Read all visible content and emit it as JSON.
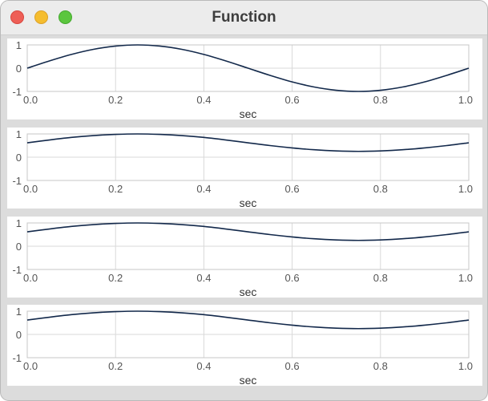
{
  "window": {
    "title": "Function",
    "controls": {
      "close": "close-button",
      "minimize": "minimize-button",
      "zoom": "zoom-button"
    },
    "colors": {
      "close": "#ee5f57",
      "minimize": "#f5bd2f",
      "zoom": "#5bc63e",
      "curve": "#13294b"
    }
  },
  "chart_data": [
    {
      "type": "line",
      "xlabel": "sec",
      "x_ticks": [
        "0.0",
        "0.2",
        "0.4",
        "0.6",
        "0.8",
        "1.0"
      ],
      "y_ticks": [
        "1",
        "0",
        "-1"
      ],
      "xlim": [
        0,
        1
      ],
      "ylim": [
        -1,
        1
      ],
      "grid": true,
      "series": [
        {
          "x": [
            0,
            0.05,
            0.1,
            0.15,
            0.2,
            0.25,
            0.3,
            0.35,
            0.4,
            0.45,
            0.5,
            0.55,
            0.6,
            0.65,
            0.7,
            0.75,
            0.8,
            0.85,
            0.9,
            0.95,
            1.0
          ],
          "y": [
            0,
            0.31,
            0.59,
            0.81,
            0.95,
            1.0,
            0.95,
            0.81,
            0.59,
            0.31,
            0,
            -0.31,
            -0.59,
            -0.81,
            -0.95,
            -1.0,
            -0.95,
            -0.81,
            -0.59,
            -0.31,
            0
          ]
        }
      ]
    },
    {
      "type": "line",
      "xlabel": "sec",
      "x_ticks": [
        "0.0",
        "0.2",
        "0.4",
        "0.6",
        "0.8",
        "1.0"
      ],
      "y_ticks": [
        "1",
        "0",
        "-1"
      ],
      "xlim": [
        0,
        1
      ],
      "ylim": [
        -1,
        1
      ],
      "grid": true,
      "series": [
        {
          "x": [
            0,
            0.05,
            0.1,
            0.15,
            0.2,
            0.25,
            0.3,
            0.35,
            0.4,
            0.45,
            0.5,
            0.55,
            0.6,
            0.65,
            0.7,
            0.75,
            0.8,
            0.85,
            0.9,
            0.95,
            1.0
          ],
          "y": [
            0.62,
            0.74,
            0.85,
            0.93,
            0.98,
            1.0,
            0.98,
            0.93,
            0.85,
            0.74,
            0.62,
            0.5,
            0.4,
            0.32,
            0.27,
            0.25,
            0.27,
            0.32,
            0.4,
            0.5,
            0.62
          ]
        }
      ]
    },
    {
      "type": "line",
      "xlabel": "sec",
      "x_ticks": [
        "0.0",
        "0.2",
        "0.4",
        "0.6",
        "0.8",
        "1.0"
      ],
      "y_ticks": [
        "1",
        "0",
        "-1"
      ],
      "xlim": [
        0,
        1
      ],
      "ylim": [
        -1,
        1
      ],
      "grid": true,
      "series": [
        {
          "x": [
            0,
            0.05,
            0.1,
            0.15,
            0.2,
            0.25,
            0.3,
            0.35,
            0.4,
            0.45,
            0.5,
            0.55,
            0.6,
            0.65,
            0.7,
            0.75,
            0.8,
            0.85,
            0.9,
            0.95,
            1.0
          ],
          "y": [
            0.62,
            0.74,
            0.85,
            0.93,
            0.98,
            1.0,
            0.98,
            0.93,
            0.85,
            0.74,
            0.62,
            0.5,
            0.4,
            0.32,
            0.27,
            0.25,
            0.27,
            0.32,
            0.4,
            0.5,
            0.62
          ]
        }
      ]
    },
    {
      "type": "line",
      "xlabel": "sec",
      "x_ticks": [
        "0.0",
        "0.2",
        "0.4",
        "0.6",
        "0.8",
        "1.0"
      ],
      "y_ticks": [
        "1",
        "0",
        "-1"
      ],
      "xlim": [
        0,
        1
      ],
      "ylim": [
        -1,
        1
      ],
      "grid": true,
      "series": [
        {
          "x": [
            0,
            0.05,
            0.1,
            0.15,
            0.2,
            0.25,
            0.3,
            0.35,
            0.4,
            0.45,
            0.5,
            0.55,
            0.6,
            0.65,
            0.7,
            0.75,
            0.8,
            0.85,
            0.9,
            0.95,
            1.0
          ],
          "y": [
            0.62,
            0.74,
            0.85,
            0.93,
            0.98,
            1.0,
            0.98,
            0.93,
            0.85,
            0.74,
            0.62,
            0.5,
            0.4,
            0.32,
            0.27,
            0.25,
            0.27,
            0.32,
            0.4,
            0.5,
            0.62
          ]
        }
      ]
    }
  ]
}
